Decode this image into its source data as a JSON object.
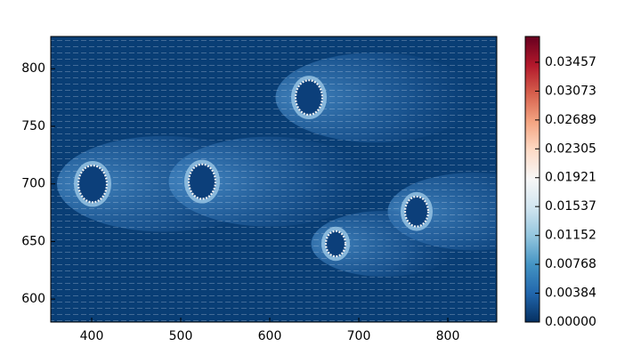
{
  "chart_data": {
    "type": "heatmap",
    "xlim": [
      354,
      855
    ],
    "xticks": [
      400,
      500,
      600,
      700,
      800
    ],
    "ylim": [
      580,
      828
    ],
    "yticks": [
      600,
      650,
      700,
      750,
      800
    ],
    "clim": [
      0,
      0.038
    ],
    "cticks": [
      {
        "value": 0,
        "label": "0.00000"
      },
      0.00384,
      0.00768,
      0.01152,
      0.01537,
      0.01921,
      0.02305,
      0.02689,
      0.03073,
      0.03457
    ],
    "colormap": [
      "#053061",
      "#2166ac",
      "#4393c3",
      "#92c5de",
      "#d1e5f0",
      "#f7f7f7",
      "#fddbc7",
      "#f4a582",
      "#d6604d",
      "#b2182b",
      "#67001f"
    ],
    "background_value": 0.0015,
    "cylinders": [
      {
        "x": 401,
        "y": 700,
        "r": 16
      },
      {
        "x": 524,
        "y": 702,
        "r": 15
      },
      {
        "x": 644,
        "y": 775,
        "r": 15
      },
      {
        "x": 765,
        "y": 676,
        "r": 13
      },
      {
        "x": 674,
        "y": 648,
        "r": 11
      }
    ]
  }
}
